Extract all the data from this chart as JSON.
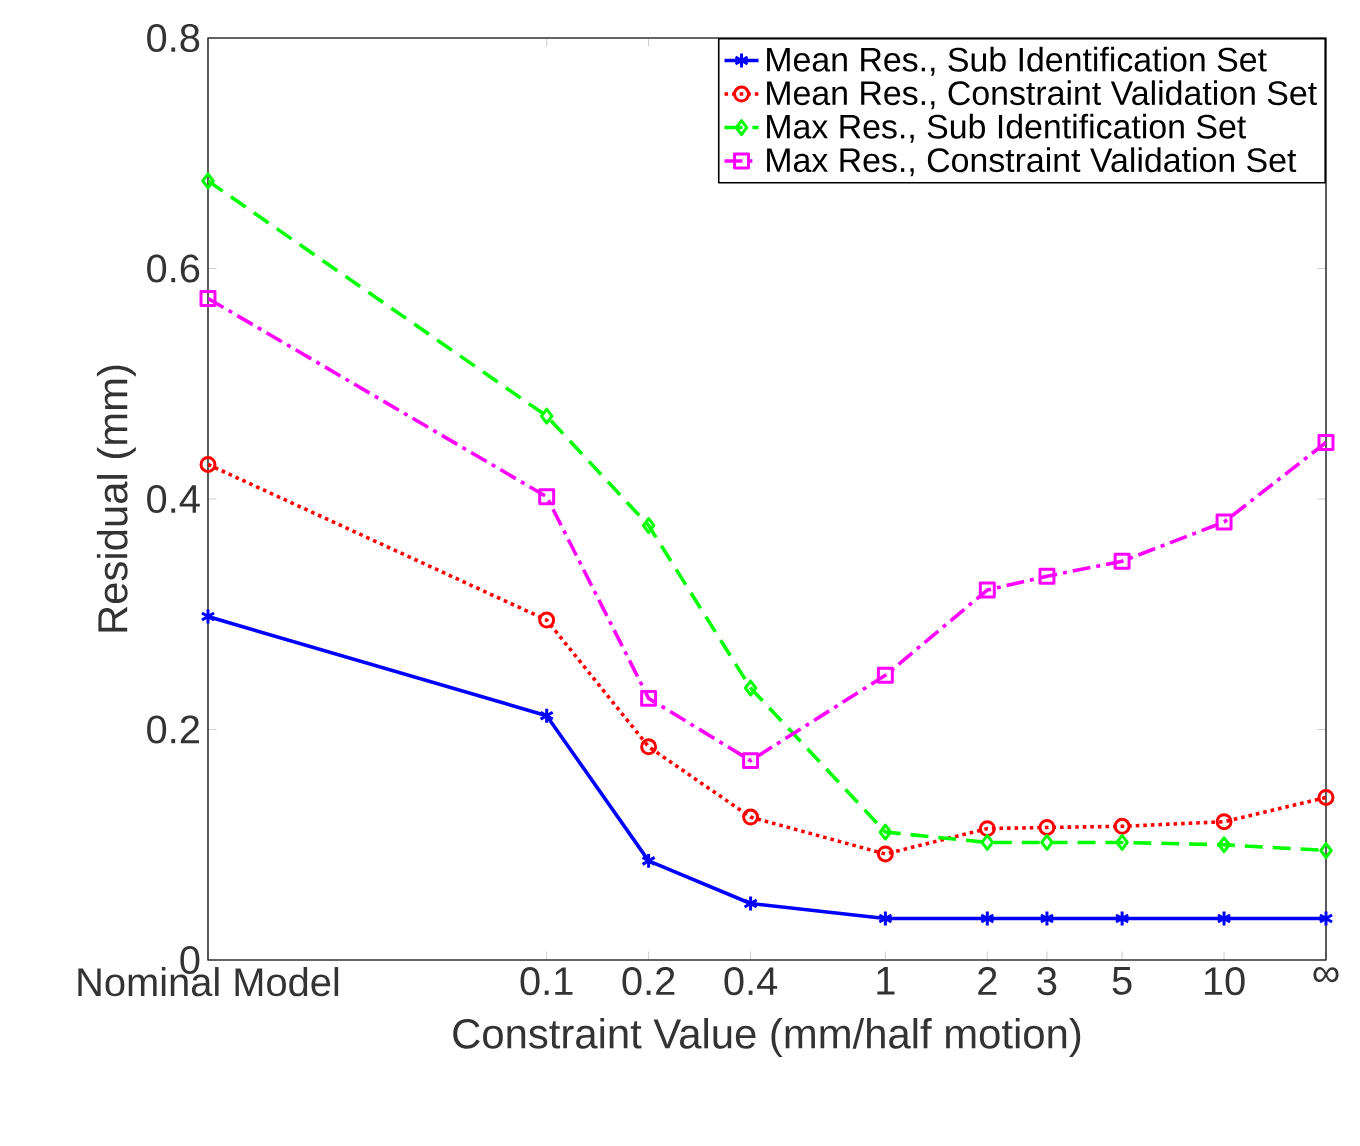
{
  "chart_data": {
    "type": "line",
    "xlabel": "Constraint Value (mm/half motion)",
    "ylabel": "Residual (mm)",
    "x": [
      0.01,
      0.1,
      0.2,
      0.4,
      1,
      2,
      3,
      5,
      10,
      20
    ],
    "xlim": [
      0.01,
      20
    ],
    "log": "x",
    "xticks": [
      {
        "value": 0.01,
        "label": "Nominal Model"
      },
      0.1,
      0.2,
      0.4,
      1,
      2,
      3,
      5,
      10,
      {
        "value": 20,
        "label": "∞"
      }
    ],
    "ylim": [
      0,
      0.8
    ],
    "yticks": [
      0,
      0.2,
      0.4,
      0.6,
      0.8
    ],
    "grid": false,
    "legend": "top right",
    "series": [
      {
        "name": "Mean Res., Sub Identification Set",
        "color": "#0000ff",
        "marker": "cross",
        "line_style": "solid",
        "values": [
          0.298,
          0.212,
          0.086,
          0.049,
          0.036,
          0.036,
          0.036,
          0.036,
          0.036,
          0.036
        ]
      },
      {
        "name": "Mean Res., Constraint Validation Set",
        "color": "#ff0000",
        "marker": "circle",
        "line_style": "dotted",
        "values": [
          0.43,
          0.295,
          0.185,
          0.124,
          0.092,
          0.114,
          0.115,
          0.116,
          0.12,
          0.141
        ]
      },
      {
        "name": "Max Res., Sub Identification Set",
        "color": "#00ff00",
        "marker": "diamond",
        "line_style": "dashed",
        "values": [
          0.676,
          0.472,
          0.377,
          0.236,
          0.111,
          0.102,
          0.102,
          0.102,
          0.1,
          0.095
        ]
      },
      {
        "name": "Max Res., Constraint Validation Set",
        "color": "#ff00ff",
        "marker": "square",
        "line_style": "dashdot",
        "values": [
          0.574,
          0.402,
          0.227,
          0.173,
          0.247,
          0.321,
          0.333,
          0.346,
          0.38,
          0.449
        ]
      }
    ]
  }
}
